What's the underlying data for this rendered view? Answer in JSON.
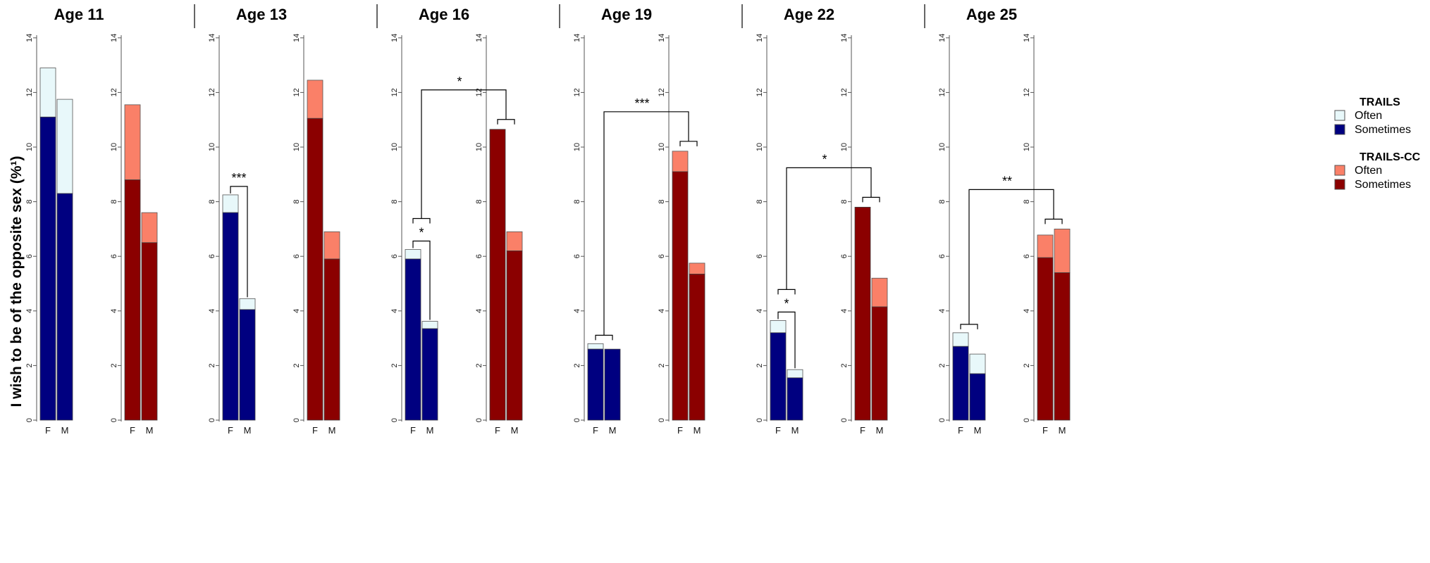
{
  "chart_data": {
    "type": "bar",
    "stacked": true,
    "ylabel": "I wish to be of the opposite sex (%¹)",
    "ylim": [
      0,
      14
    ],
    "yticks": [
      "0",
      "2",
      "4",
      "6",
      "8",
      "10",
      "12",
      "14"
    ],
    "categories": [
      "F",
      "M"
    ],
    "colors": {
      "trails_sometimes": "#000080",
      "trails_often": "#e8f8fa",
      "cc_sometimes": "#8b0000",
      "cc_often": "#fa8068"
    },
    "legend": {
      "placement": "right",
      "groups": [
        {
          "title": "TRAILS",
          "entries": [
            "Often",
            "Sometimes"
          ]
        },
        {
          "title": "TRAILS-CC",
          "entries": [
            "Often",
            "Sometimes"
          ]
        }
      ]
    },
    "panels": [
      {
        "title": "Age 11",
        "trails": {
          "sometimes": [
            11.1,
            8.3
          ],
          "total": [
            12.9,
            11.75
          ]
        },
        "trails_cc": {
          "sometimes": [
            8.8,
            6.5
          ],
          "total": [
            11.55,
            7.6
          ]
        },
        "annotations": []
      },
      {
        "title": "Age 13",
        "trails": {
          "sometimes": [
            7.6,
            4.05
          ],
          "total": [
            8.25,
            4.45
          ]
        },
        "trails_cc": {
          "sometimes": [
            11.05,
            5.9
          ],
          "total": [
            12.45,
            6.9
          ]
        },
        "annotations": [
          {
            "label": "***",
            "type": "within_sex"
          }
        ]
      },
      {
        "title": "Age 16",
        "trails": {
          "sometimes": [
            5.9,
            3.35
          ],
          "total": [
            6.25,
            3.62
          ]
        },
        "trails_cc": {
          "sometimes": [
            10.65,
            6.2
          ],
          "total": [
            10.65,
            6.9
          ]
        },
        "annotations": [
          {
            "label": "*",
            "type": "within_sex"
          },
          {
            "label": "*",
            "type": "between_cohorts"
          }
        ]
      },
      {
        "title": "Age 19",
        "trails": {
          "sometimes": [
            2.6,
            2.6
          ],
          "total": [
            2.8,
            2.6
          ]
        },
        "trails_cc": {
          "sometimes": [
            9.1,
            5.35
          ],
          "total": [
            9.85,
            5.75
          ]
        },
        "annotations": [
          {
            "label": "***",
            "type": "between_cohorts"
          }
        ]
      },
      {
        "title": "Age 22",
        "trails": {
          "sometimes": [
            3.2,
            1.55
          ],
          "total": [
            3.65,
            1.85
          ]
        },
        "trails_cc": {
          "sometimes": [
            7.8,
            4.15
          ],
          "total": [
            7.8,
            5.2
          ]
        },
        "annotations": [
          {
            "label": "*",
            "type": "within_sex"
          },
          {
            "label": "*",
            "type": "between_cohorts"
          }
        ]
      },
      {
        "title": "Age 25",
        "trails": {
          "sometimes": [
            2.7,
            1.7
          ],
          "total": [
            3.2,
            2.42
          ]
        },
        "trails_cc": {
          "sometimes": [
            5.95,
            5.4
          ],
          "total": [
            6.78,
            7.0
          ]
        },
        "annotations": [
          {
            "label": "**",
            "type": "between_cohorts"
          }
        ]
      }
    ]
  }
}
